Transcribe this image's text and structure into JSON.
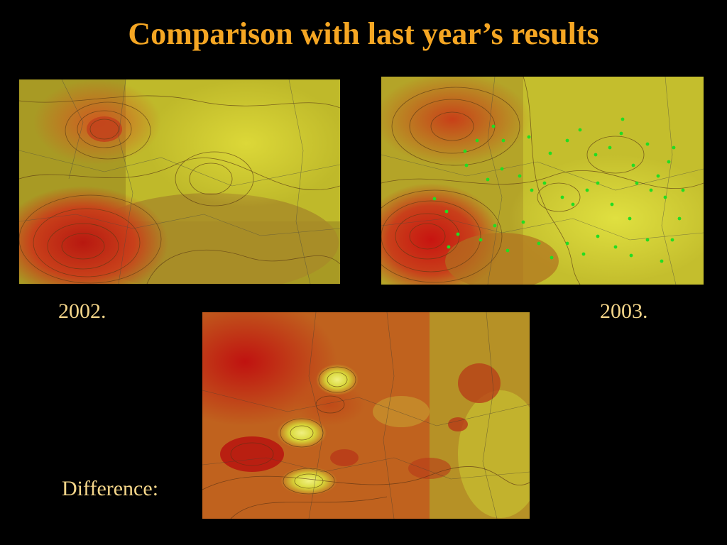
{
  "title": "Comparison with last year’s results",
  "maps": {
    "y2002": {
      "caption": "2002."
    },
    "y2003": {
      "caption": "2003."
    },
    "difference": {
      "caption": "Difference:"
    }
  },
  "colors": {
    "title": "#f5a623",
    "caption": "#f5d68a",
    "background": "#000000",
    "hot": "#c01a10",
    "mid": "#c8641e",
    "cool": "#d8d830",
    "station_marker": "#22dd22"
  }
}
